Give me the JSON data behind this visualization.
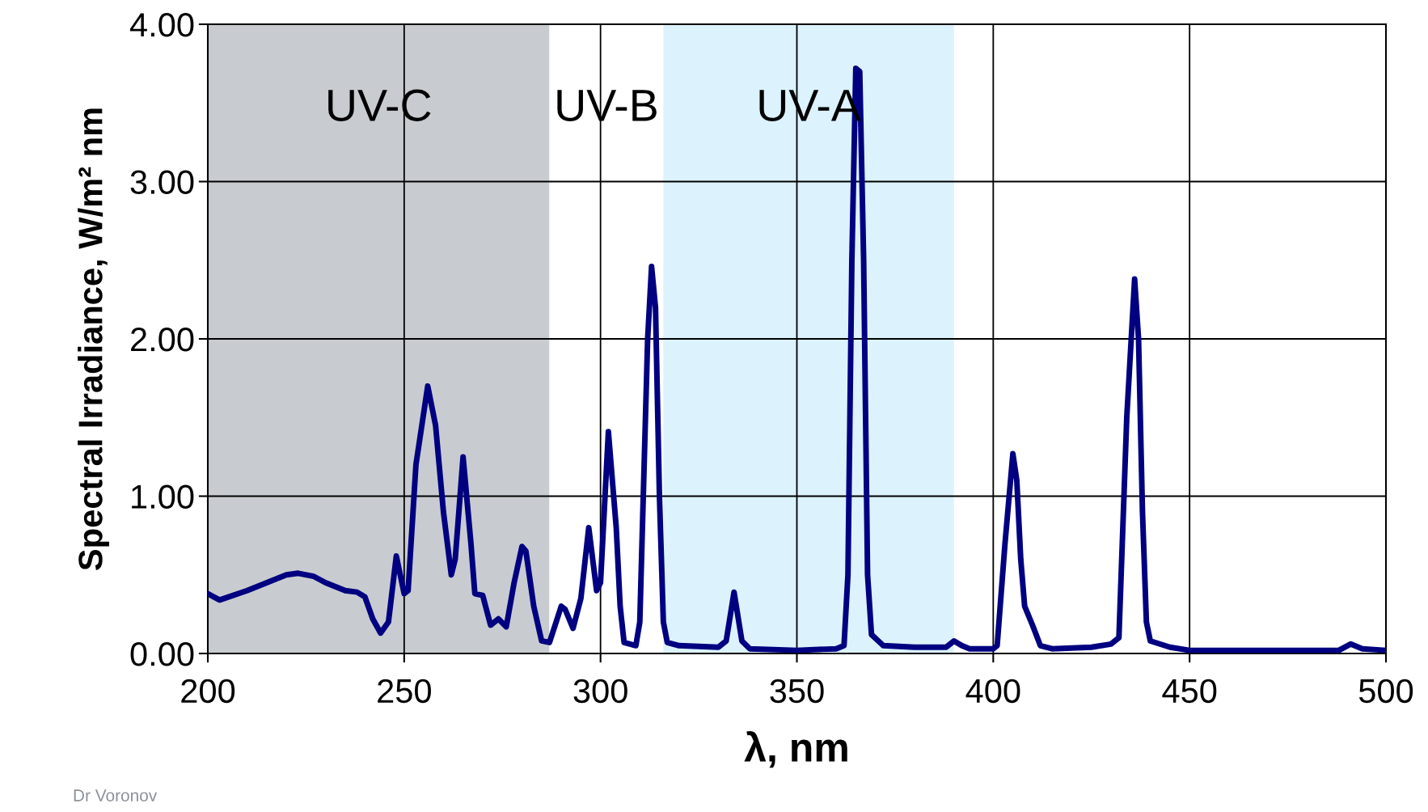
{
  "chart_data": {
    "type": "line",
    "xlabel": "λ, nm",
    "ylabel": "Spectral Irradiance, W/m² nm",
    "x": [
      200,
      203,
      210,
      215,
      220,
      223,
      227,
      230,
      235,
      238,
      240,
      242,
      244,
      246,
      248,
      250,
      251,
      253,
      256,
      258,
      260,
      262,
      263,
      265,
      267,
      268,
      270,
      272,
      274,
      276,
      278,
      280,
      281,
      283,
      285,
      287,
      290,
      291,
      293,
      295,
      297,
      299,
      300,
      302,
      304,
      305,
      306,
      309,
      310,
      312,
      313,
      314,
      315,
      316,
      317,
      320,
      330,
      332,
      334,
      336,
      338,
      350,
      360,
      362,
      363,
      364,
      365,
      366,
      367,
      368,
      369,
      372,
      380,
      388,
      390,
      392,
      394,
      400,
      401,
      403,
      405,
      406,
      407,
      408,
      410,
      412,
      415,
      425,
      430,
      432,
      434,
      436,
      437,
      438,
      439,
      440,
      445,
      450,
      480,
      488,
      491,
      494,
      500
    ],
    "series": [
      {
        "color": "#000080",
        "values": [
          0.38,
          0.34,
          0.4,
          0.45,
          0.5,
          0.51,
          0.49,
          0.45,
          0.4,
          0.39,
          0.36,
          0.22,
          0.13,
          0.2,
          0.62,
          0.38,
          0.4,
          1.2,
          1.7,
          1.45,
          0.9,
          0.5,
          0.6,
          1.25,
          0.7,
          0.38,
          0.37,
          0.18,
          0.22,
          0.17,
          0.45,
          0.68,
          0.65,
          0.3,
          0.08,
          0.07,
          0.3,
          0.28,
          0.16,
          0.35,
          0.8,
          0.4,
          0.45,
          1.41,
          0.8,
          0.3,
          0.07,
          0.05,
          0.2,
          2.0,
          2.46,
          2.2,
          1.0,
          0.2,
          0.07,
          0.05,
          0.04,
          0.08,
          0.39,
          0.08,
          0.03,
          0.02,
          0.03,
          0.05,
          0.5,
          2.5,
          3.72,
          3.7,
          2.5,
          0.5,
          0.12,
          0.05,
          0.04,
          0.04,
          0.08,
          0.05,
          0.03,
          0.03,
          0.05,
          0.7,
          1.27,
          1.1,
          0.6,
          0.3,
          0.18,
          0.05,
          0.03,
          0.04,
          0.06,
          0.1,
          1.5,
          2.38,
          2.0,
          0.9,
          0.2,
          0.08,
          0.04,
          0.02,
          0.02,
          0.02,
          0.06,
          0.03,
          0.02
        ]
      }
    ],
    "xlim": [
      200,
      500
    ],
    "xticks": [
      200,
      250,
      300,
      350,
      400,
      450,
      500
    ],
    "ylim": [
      0,
      4
    ],
    "yticks": [
      {
        "value": 0,
        "label": "0.00"
      },
      {
        "value": 1,
        "label": "1.00"
      },
      {
        "value": 2,
        "label": "2.00"
      },
      {
        "value": 3,
        "label": "3.00"
      },
      {
        "value": 4,
        "label": "4.00"
      }
    ],
    "grid": true,
    "line_style": "solid",
    "marker": "none",
    "bands": [
      {
        "axis": "x",
        "from": 200,
        "to": 287,
        "color": "#c8ccd0",
        "label": "UV-C"
      },
      {
        "axis": "x",
        "from": 287,
        "to": 316,
        "color": "#ffffff",
        "label": "UV-B"
      },
      {
        "axis": "x",
        "from": 316,
        "to": 390,
        "color": "#dcf2fc",
        "label": "UV-A"
      }
    ],
    "annotations": [
      "Dr Voronov"
    ]
  }
}
